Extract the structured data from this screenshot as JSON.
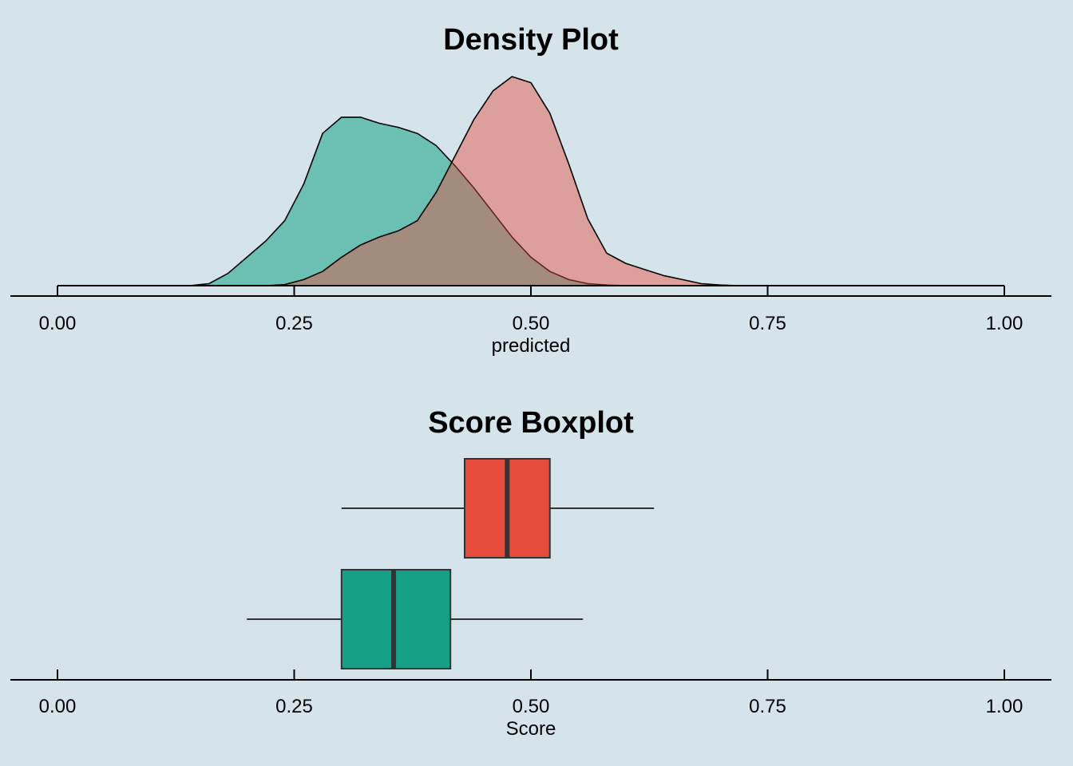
{
  "chart_data": [
    {
      "type": "area",
      "title": "Density Plot",
      "xlabel": "predicted",
      "ylabel": "",
      "xlim": [
        0,
        1
      ],
      "x_ticks": [
        "0.00",
        "0.25",
        "0.50",
        "0.75",
        "1.00"
      ],
      "grid": false,
      "legend": "none",
      "series": [
        {
          "color": "#16a085",
          "x": [
            0.14,
            0.16,
            0.18,
            0.2,
            0.22,
            0.24,
            0.26,
            0.28,
            0.3,
            0.32,
            0.34,
            0.36,
            0.38,
            0.4,
            0.42,
            0.44,
            0.46,
            0.48,
            0.5,
            0.52,
            0.54,
            0.56,
            0.58,
            0.6,
            0.62
          ],
          "y": [
            0.0,
            0.1,
            0.6,
            1.4,
            2.2,
            3.2,
            5.0,
            7.5,
            8.3,
            8.3,
            8.0,
            7.8,
            7.5,
            6.9,
            5.9,
            4.8,
            3.6,
            2.4,
            1.4,
            0.7,
            0.3,
            0.1,
            0.03,
            0.0,
            0.0
          ]
        },
        {
          "color": "#e74c3c",
          "x": [
            0.22,
            0.24,
            0.26,
            0.28,
            0.3,
            0.32,
            0.34,
            0.36,
            0.38,
            0.4,
            0.42,
            0.44,
            0.46,
            0.48,
            0.5,
            0.52,
            0.54,
            0.56,
            0.58,
            0.6,
            0.62,
            0.64,
            0.66,
            0.68,
            0.7,
            0.72
          ],
          "y": [
            0.0,
            0.05,
            0.3,
            0.7,
            1.4,
            2.0,
            2.4,
            2.7,
            3.2,
            4.6,
            6.4,
            8.2,
            9.6,
            10.3,
            10.0,
            8.5,
            6.0,
            3.3,
            1.6,
            1.1,
            0.8,
            0.5,
            0.3,
            0.1,
            0.03,
            0.0
          ]
        }
      ]
    },
    {
      "type": "boxplot",
      "title": "Score Boxplot",
      "xlabel": "Score",
      "ylabel": "",
      "xlim": [
        0,
        1
      ],
      "x_ticks": [
        "0.00",
        "0.25",
        "0.50",
        "0.75",
        "1.00"
      ],
      "grid": false,
      "legend": "none",
      "boxes": [
        {
          "color": "#e74c3c",
          "whisker_low": 0.3,
          "q1": 0.43,
          "median": 0.475,
          "q3": 0.52,
          "whisker_high": 0.63
        },
        {
          "color": "#16a085",
          "whisker_low": 0.2,
          "q1": 0.3,
          "median": 0.355,
          "q3": 0.415,
          "whisker_high": 0.555
        }
      ]
    }
  ]
}
